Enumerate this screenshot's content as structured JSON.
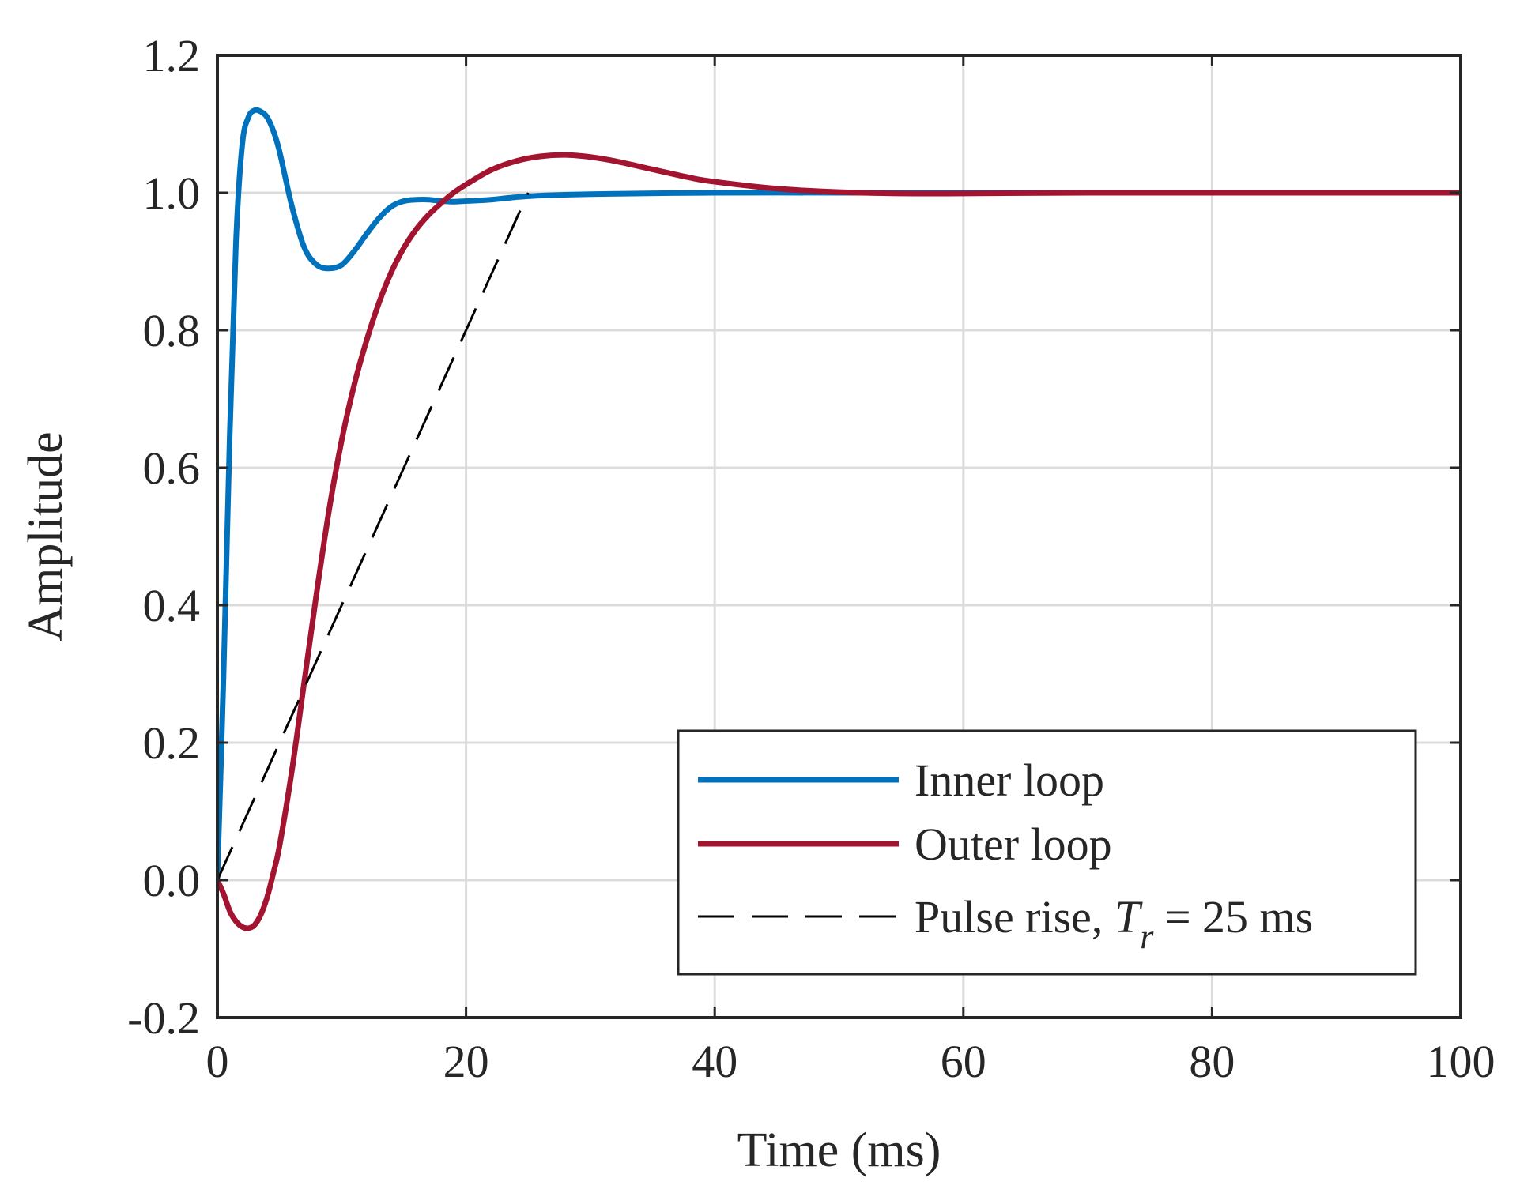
{
  "chart_data": {
    "type": "line",
    "title": "",
    "xlabel": "Time (ms)",
    "ylabel": "Amplitude",
    "xlim": [
      0,
      100
    ],
    "ylim": [
      -0.2,
      1.2
    ],
    "xticks": [
      0,
      20,
      40,
      60,
      80,
      100
    ],
    "xtick_labels": [
      "0",
      "20",
      "40",
      "60",
      "80",
      "100"
    ],
    "yticks": [
      -0.2,
      0.0,
      0.2,
      0.4,
      0.6,
      0.8,
      1.0,
      1.2
    ],
    "ytick_labels": [
      "-0.2",
      "0.0",
      "0.2",
      "0.4",
      "0.6",
      "0.8",
      "1.0",
      "1.2"
    ],
    "grid": true,
    "legend_position": "bottom-right",
    "series": [
      {
        "name": "Inner loop",
        "color": "#0072BD",
        "style": "solid",
        "x": [
          0,
          0.5,
          1,
          1.5,
          2,
          2.5,
          3,
          3.5,
          4,
          4.5,
          5,
          6,
          7,
          8,
          9,
          10,
          11,
          12,
          13,
          14,
          15,
          16,
          17,
          18,
          19,
          20,
          22,
          25,
          30,
          40,
          50,
          60,
          70,
          80,
          90,
          100
        ],
        "y": [
          0,
          0.3,
          0.65,
          0.93,
          1.07,
          1.11,
          1.12,
          1.118,
          1.11,
          1.09,
          1.06,
          0.98,
          0.92,
          0.895,
          0.89,
          0.895,
          0.915,
          0.94,
          0.963,
          0.98,
          0.988,
          0.99,
          0.99,
          0.988,
          0.987,
          0.988,
          0.99,
          0.995,
          0.998,
          1.0,
          1.0,
          1.0,
          1.0,
          1.0,
          1.0,
          1.0
        ]
      },
      {
        "name": "Outer loop",
        "color": "#A2142F",
        "style": "solid",
        "x": [
          0,
          0.5,
          1,
          1.5,
          2,
          2.5,
          3,
          3.5,
          4,
          4.5,
          5,
          6,
          7,
          8,
          9,
          10,
          11,
          12,
          13,
          14,
          15,
          16,
          17,
          18,
          19,
          20,
          22,
          24,
          26,
          28,
          30,
          32,
          35,
          38,
          40,
          45,
          50,
          55,
          60,
          70,
          80,
          90,
          100
        ],
        "y": [
          0,
          -0.02,
          -0.045,
          -0.06,
          -0.068,
          -0.07,
          -0.065,
          -0.05,
          -0.025,
          0.01,
          0.05,
          0.16,
          0.29,
          0.42,
          0.54,
          0.64,
          0.72,
          0.785,
          0.84,
          0.885,
          0.92,
          0.947,
          0.968,
          0.985,
          1.0,
          1.012,
          1.033,
          1.046,
          1.053,
          1.055,
          1.052,
          1.046,
          1.034,
          1.022,
          1.016,
          1.006,
          1.001,
          0.999,
          0.999,
          1.0,
          1.0,
          1.0,
          1.0
        ]
      },
      {
        "name": "Pulse rise, T_r = 25 ms",
        "legend_main": "Pulse rise, ",
        "legend_symbol": "T",
        "legend_subscript": "r",
        "legend_tail": " = 25 ms",
        "color": "#000000",
        "style": "dashed",
        "x": [
          0,
          25
        ],
        "y": [
          0,
          1.0
        ]
      }
    ]
  }
}
